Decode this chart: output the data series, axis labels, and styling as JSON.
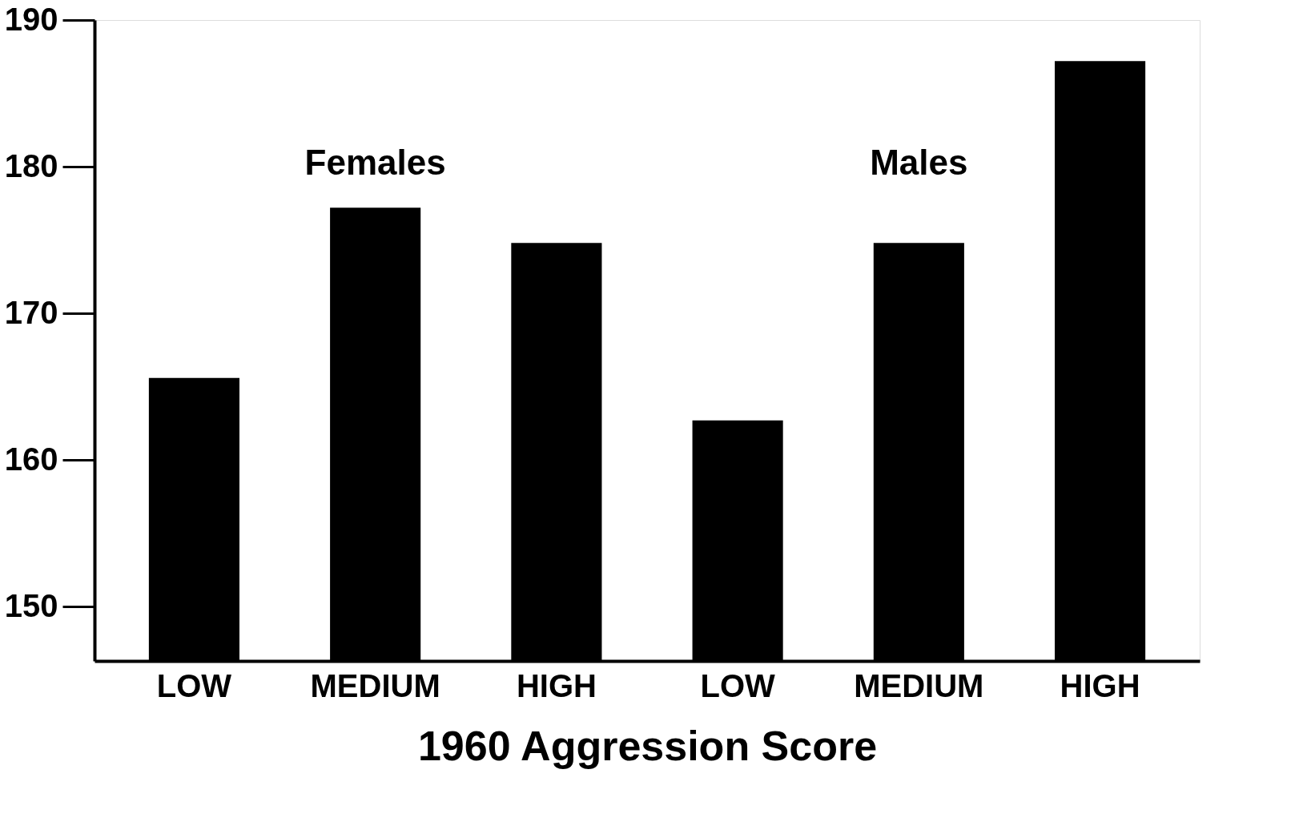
{
  "chart_data": {
    "type": "bar",
    "xlabel": "1960 Aggression Score",
    "categories": [
      "LOW",
      "MEDIUM",
      "HIGH",
      "LOW",
      "MEDIUM",
      "HIGH"
    ],
    "values": [
      165.6,
      177.2,
      174.8,
      162.7,
      174.8,
      187.2
    ],
    "color": "#000000",
    "annotations": [
      "Females",
      "Males"
    ],
    "ylim": [
      146.3,
      190
    ],
    "yticks": [
      150,
      160,
      170,
      180,
      190
    ],
    "grid": false
  }
}
